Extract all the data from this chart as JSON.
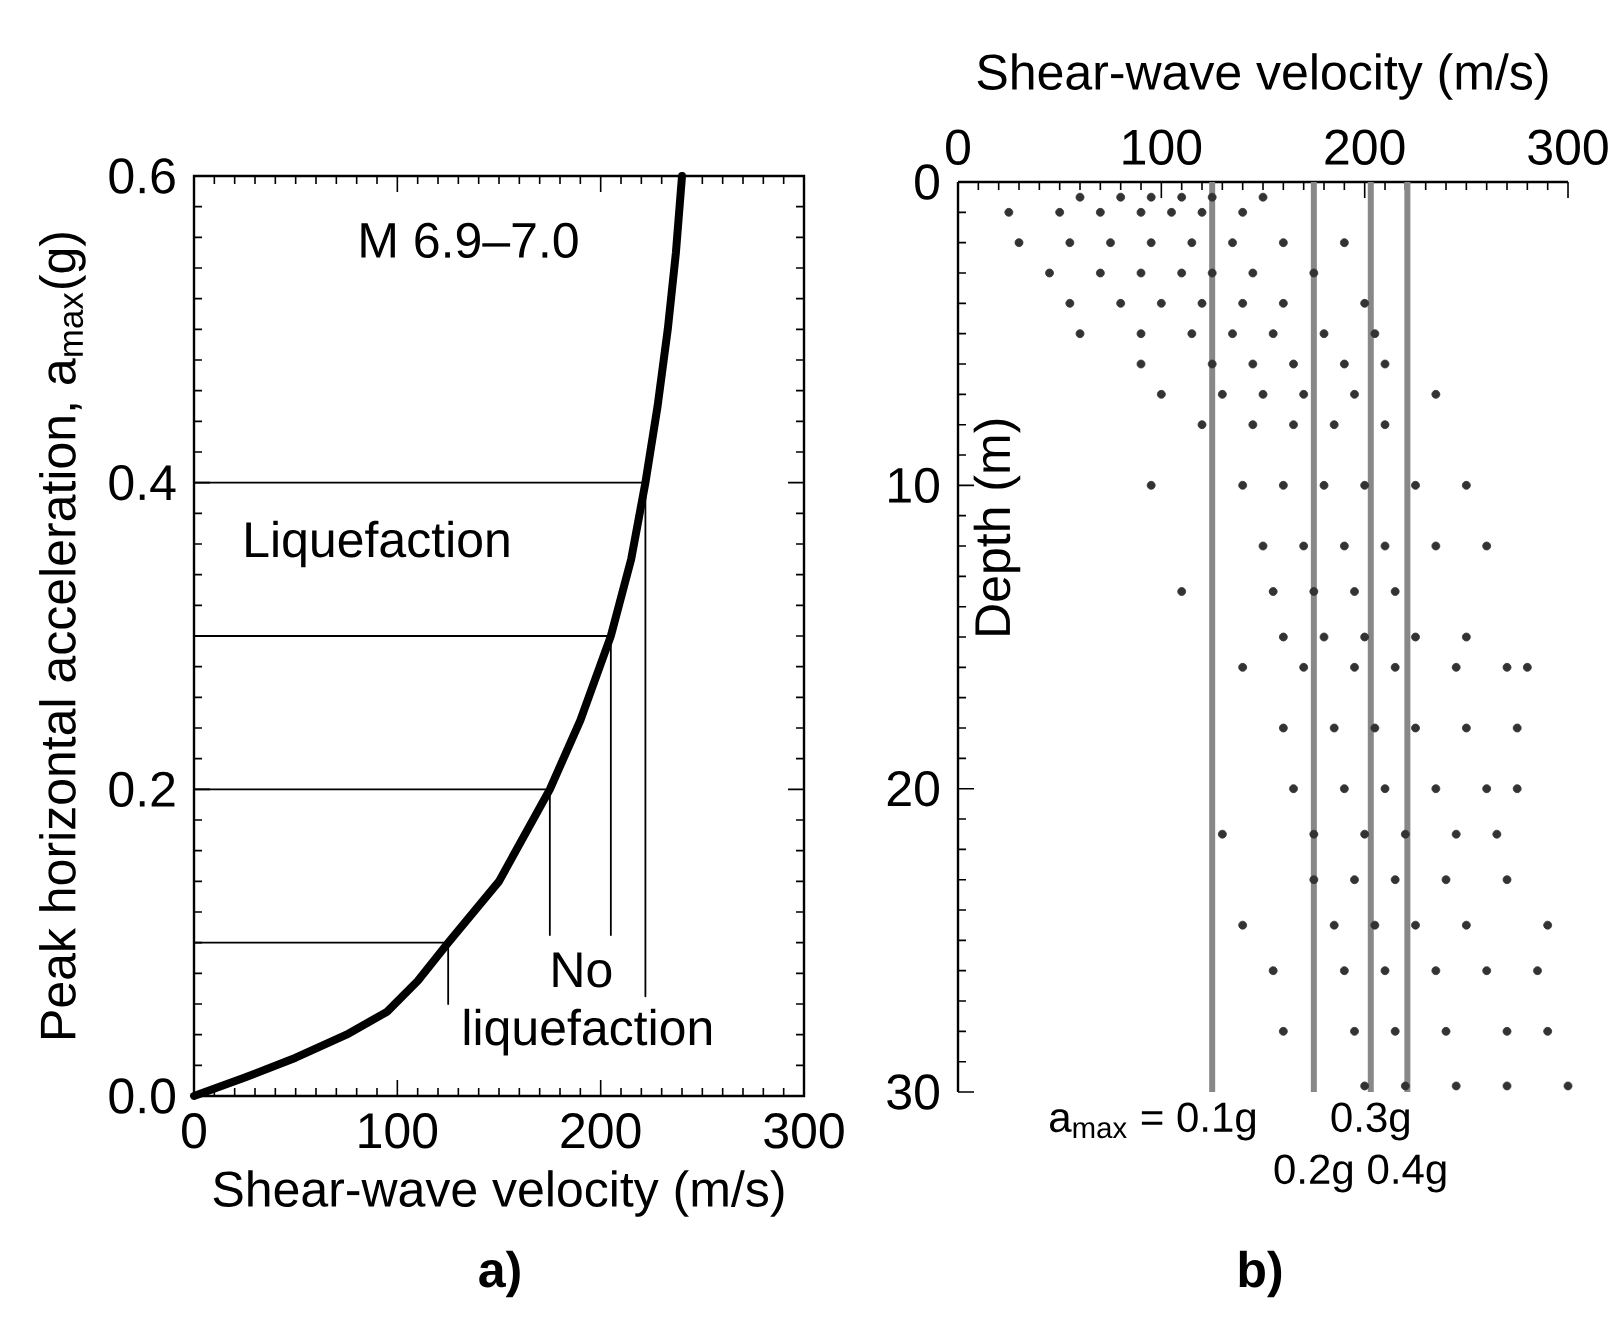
{
  "chart_data": [
    {
      "type": "line",
      "xlabel": "Shear-wave velocity (m/s)",
      "ylabel": "Peak horizontal acceleration, a$_{max}$(g)",
      "xlim": [
        0,
        300
      ],
      "ylim": [
        0,
        0.6
      ],
      "xticks": [
        0,
        100,
        200,
        300
      ],
      "yticks": [
        {
          "value": 0,
          "label": "0.0"
        },
        {
          "value": 0.2,
          "label": "0.2"
        },
        {
          "value": 0.4,
          "label": "0.4"
        },
        {
          "value": 0.6,
          "label": "0.6"
        }
      ],
      "annotations": [
        "M 6.9–7.0",
        "Liquefaction",
        "No liquefaction",
        "a)"
      ],
      "series": [
        {
          "color": "#000000",
          "x": [
            0,
            25,
            50,
            75,
            95,
            110,
            125,
            150,
            175,
            190,
            205,
            215,
            222,
            228,
            233,
            237,
            240
          ],
          "values": [
            0,
            0.012,
            0.025,
            0.04,
            0.055,
            0.075,
            0.1,
            0.14,
            0.2,
            0.245,
            0.3,
            0.35,
            0.4,
            0.45,
            0.5,
            0.55,
            0.6
          ]
        },
        {
          "color": "#000000",
          "x": [
            0,
            125,
            125
          ],
          "values": [
            0.1,
            0.1,
            0.06
          ]
        },
        {
          "color": "#000000",
          "x": [
            0,
            175,
            175
          ],
          "values": [
            0.2,
            0.2,
            0.105
          ]
        },
        {
          "color": "#000000",
          "x": [
            0,
            205,
            205
          ],
          "values": [
            0.3,
            0.3,
            0.105
          ]
        },
        {
          "color": "#000000",
          "x": [
            0,
            222,
            222
          ],
          "values": [
            0.4,
            0.4,
            0.065
          ]
        }
      ]
    },
    {
      "type": "scatter",
      "xlabel": "Shear-wave velocity (m/s)",
      "ylabel": "Depth (m)",
      "xlim": [
        0,
        300
      ],
      "ylim": [
        30,
        0
      ],
      "xticks": [
        0,
        100,
        200,
        300
      ],
      "yticks": [
        0,
        10,
        20,
        30
      ],
      "annotations": [
        "b)",
        {
          "text": "a$_{max}$ = 0.1g",
          "x": 125,
          "y": 30
        },
        {
          "text": "0.2g",
          "x": 175,
          "y": 30
        },
        {
          "text": "0.3g",
          "x": 203,
          "y": 30
        },
        {
          "text": "0.4g",
          "x": 221,
          "y": 30
        }
      ],
      "ref_lines": [
        {
          "axis": "x",
          "value": 125,
          "color": "#888888"
        },
        {
          "axis": "x",
          "value": 175,
          "color": "#888888"
        },
        {
          "axis": "x",
          "value": 203,
          "color": "#888888"
        },
        {
          "axis": "x",
          "value": 221,
          "color": "#888888"
        }
      ],
      "series": [
        {
          "color": "#333333",
          "x": [
            60,
            80,
            95,
            110,
            125,
            150,
            25,
            50,
            70,
            90,
            105,
            120,
            140,
            30,
            55,
            75,
            95,
            115,
            135,
            160,
            190,
            45,
            70,
            90,
            110,
            125,
            145,
            175,
            55,
            80,
            100,
            120,
            140,
            160,
            200,
            60,
            90,
            115,
            135,
            155,
            180,
            205,
            90,
            125,
            145,
            165,
            190,
            210,
            100,
            130,
            150,
            170,
            195,
            235,
            120,
            145,
            165,
            185,
            210,
            95,
            140,
            160,
            180,
            200,
            225,
            250,
            150,
            170,
            190,
            210,
            235,
            260,
            110,
            155,
            175,
            195,
            215,
            160,
            180,
            200,
            225,
            250,
            140,
            170,
            195,
            215,
            245,
            270,
            280,
            160,
            185,
            205,
            225,
            250,
            275,
            165,
            190,
            210,
            235,
            260,
            275,
            130,
            175,
            200,
            220,
            245,
            265,
            175,
            195,
            215,
            240,
            270,
            140,
            185,
            205,
            225,
            250,
            290,
            155,
            190,
            210,
            235,
            260,
            285,
            160,
            195,
            215,
            240,
            270,
            290,
            200,
            220,
            245,
            270,
            300
          ],
          "values": [
            0.5,
            0.5,
            0.5,
            0.5,
            0.5,
            0.5,
            1,
            1,
            1,
            1,
            1,
            1,
            1,
            2,
            2,
            2,
            2,
            2,
            2,
            2,
            2,
            3,
            3,
            3,
            3,
            3,
            3,
            3,
            4,
            4,
            4,
            4,
            4,
            4,
            4,
            5,
            5,
            5,
            5,
            5,
            5,
            5,
            6,
            6,
            6,
            6,
            6,
            6,
            7,
            7,
            7,
            7,
            7,
            7,
            8,
            8,
            8,
            8,
            8,
            10,
            10,
            10,
            10,
            10,
            10,
            10,
            12,
            12,
            12,
            12,
            12,
            12,
            13.5,
            13.5,
            13.5,
            13.5,
            13.5,
            15,
            15,
            15,
            15,
            15,
            16,
            16,
            16,
            16,
            16,
            16,
            16,
            18,
            18,
            18,
            18,
            18,
            18,
            20,
            20,
            20,
            20,
            20,
            20,
            21.5,
            21.5,
            21.5,
            21.5,
            21.5,
            21.5,
            23,
            23,
            23,
            23,
            23,
            24.5,
            24.5,
            24.5,
            24.5,
            24.5,
            24.5,
            26,
            26,
            26,
            26,
            26,
            26,
            28,
            28,
            28,
            28,
            28,
            28,
            29.8,
            29.8,
            29.8,
            29.8,
            29.8
          ]
        }
      ]
    }
  ]
}
